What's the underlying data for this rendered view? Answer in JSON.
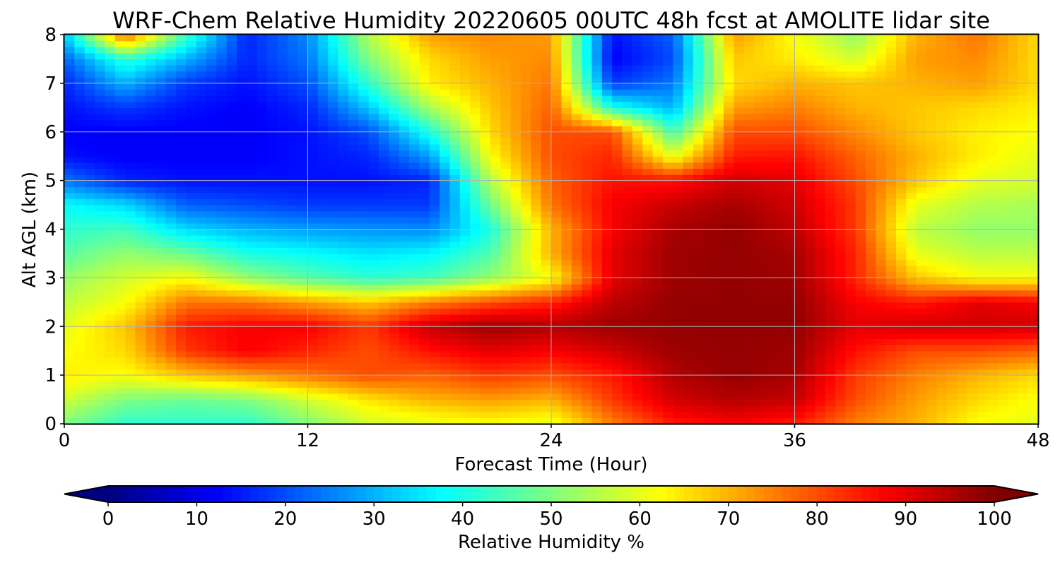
{
  "chart_data": {
    "type": "heatmap",
    "title": "WRF-Chem Relative Humidity 20220605 00UTC 48h fcst at AMOLITE lidar site",
    "xlabel": "Forecast Time (Hour)",
    "ylabel": "Alt AGL (km)",
    "xlim": [
      0,
      48
    ],
    "ylim": [
      0,
      8
    ],
    "x_ticks": [
      "0",
      "12",
      "24",
      "36",
      "48"
    ],
    "y_ticks": [
      "0",
      "1",
      "2",
      "3",
      "4",
      "5",
      "6",
      "7",
      "8"
    ],
    "grid": true,
    "colormap": "jet",
    "colorbar": {
      "label": "Relative Humidity %",
      "range": [
        0,
        100
      ],
      "ticks": [
        "0",
        "10",
        "20",
        "30",
        "40",
        "50",
        "60",
        "70",
        "80",
        "90",
        "100"
      ],
      "extend": "both",
      "orientation": "horizontal",
      "placement": "bottom"
    },
    "x": [
      0,
      3,
      6,
      9,
      12,
      15,
      18,
      21,
      24,
      27,
      30,
      33,
      36,
      39,
      42,
      45,
      48
    ],
    "y": [
      0,
      0.5,
      1,
      1.5,
      2,
      2.5,
      3,
      3.5,
      4,
      4.5,
      5,
      5.5,
      6,
      6.5,
      7,
      7.5,
      8
    ],
    "z": [
      [
        50,
        42,
        42,
        42,
        50,
        58,
        60,
        62,
        60,
        75,
        85,
        88,
        85,
        75,
        70,
        62,
        60
      ],
      [
        58,
        50,
        48,
        50,
        58,
        65,
        70,
        72,
        70,
        82,
        92,
        95,
        93,
        80,
        72,
        66,
        62
      ],
      [
        64,
        62,
        68,
        72,
        76,
        80,
        78,
        82,
        80,
        85,
        95,
        98,
        96,
        82,
        75,
        70,
        66
      ],
      [
        62,
        66,
        82,
        88,
        84,
        80,
        86,
        90,
        88,
        92,
        97,
        98,
        97,
        86,
        80,
        80,
        78
      ],
      [
        60,
        68,
        85,
        88,
        88,
        82,
        93,
        97,
        95,
        97,
        98,
        98,
        98,
        90,
        92,
        92,
        92
      ],
      [
        56,
        62,
        76,
        76,
        72,
        68,
        75,
        80,
        84,
        94,
        98,
        98,
        98,
        88,
        85,
        90,
        88
      ],
      [
        52,
        58,
        62,
        52,
        46,
        42,
        44,
        52,
        62,
        90,
        97,
        98,
        97,
        84,
        68,
        62,
        62
      ],
      [
        46,
        52,
        48,
        40,
        38,
        35,
        37,
        45,
        70,
        90,
        97,
        98,
        96,
        84,
        60,
        56,
        56
      ],
      [
        42,
        44,
        34,
        30,
        28,
        27,
        26,
        40,
        70,
        88,
        96,
        98,
        94,
        82,
        56,
        52,
        52
      ],
      [
        38,
        34,
        22,
        20,
        18,
        18,
        18,
        48,
        76,
        88,
        93,
        96,
        92,
        82,
        60,
        55,
        54
      ],
      [
        24,
        16,
        14,
        14,
        14,
        14,
        16,
        55,
        78,
        86,
        86,
        92,
        90,
        80,
        68,
        60,
        58
      ],
      [
        14,
        12,
        12,
        12,
        14,
        16,
        28,
        62,
        80,
        84,
        60,
        85,
        86,
        78,
        70,
        64,
        60
      ],
      [
        12,
        12,
        12,
        12,
        14,
        20,
        40,
        66,
        80,
        80,
        44,
        80,
        80,
        74,
        68,
        64,
        62
      ],
      [
        14,
        18,
        14,
        12,
        16,
        32,
        54,
        68,
        78,
        40,
        30,
        72,
        75,
        70,
        68,
        66,
        64
      ],
      [
        16,
        30,
        18,
        14,
        20,
        42,
        64,
        70,
        76,
        18,
        24,
        66,
        70,
        68,
        70,
        72,
        66
      ],
      [
        22,
        42,
        30,
        16,
        24,
        50,
        66,
        72,
        74,
        12,
        20,
        68,
        64,
        58,
        72,
        74,
        66
      ],
      [
        32,
        78,
        44,
        16,
        26,
        55,
        72,
        74,
        72,
        14,
        22,
        72,
        62,
        52,
        70,
        76,
        66
      ]
    ]
  }
}
